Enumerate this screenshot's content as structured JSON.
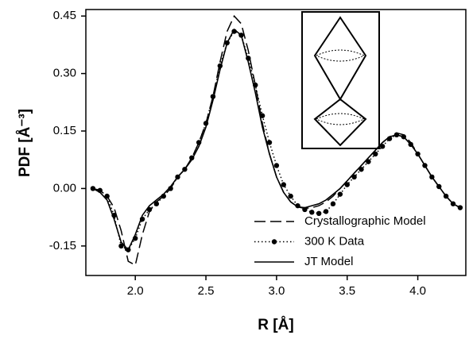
{
  "chart_data": {
    "type": "line",
    "xlabel": "R [Å]",
    "ylabel": "PDF [Å⁻³]",
    "x": [
      1.7,
      1.75,
      1.8,
      1.85,
      1.9,
      1.95,
      2.0,
      2.05,
      2.1,
      2.15,
      2.2,
      2.25,
      2.3,
      2.35,
      2.4,
      2.45,
      2.5,
      2.55,
      2.6,
      2.65,
      2.7,
      2.75,
      2.8,
      2.85,
      2.9,
      2.95,
      3.0,
      3.05,
      3.1,
      3.15,
      3.2,
      3.25,
      3.3,
      3.35,
      3.4,
      3.45,
      3.5,
      3.55,
      3.6,
      3.65,
      3.7,
      3.75,
      3.8,
      3.85,
      3.9,
      3.95,
      4.0,
      4.05,
      4.1,
      4.15,
      4.2,
      4.25,
      4.3
    ],
    "series": [
      {
        "name": "Crystallographic Model",
        "color": "#000000",
        "style": "dashed",
        "values": [
          0.0,
          -0.005,
          -0.02,
          -0.05,
          -0.11,
          -0.19,
          -0.2,
          -0.12,
          -0.06,
          -0.035,
          -0.02,
          0.0,
          0.03,
          0.05,
          0.08,
          0.12,
          0.17,
          0.24,
          0.33,
          0.41,
          0.45,
          0.43,
          0.36,
          0.27,
          0.17,
          0.09,
          0.03,
          -0.01,
          -0.035,
          -0.048,
          -0.052,
          -0.05,
          -0.045,
          -0.035,
          -0.02,
          0.0,
          0.02,
          0.04,
          0.06,
          0.08,
          0.1,
          0.12,
          0.135,
          0.145,
          0.14,
          0.12,
          0.09,
          0.06,
          0.03,
          0.005,
          -0.02,
          -0.04,
          -0.05
        ]
      },
      {
        "name": "300 K Data",
        "color": "#000000",
        "style": "dotted-markers",
        "values": [
          0.0,
          -0.005,
          -0.02,
          -0.07,
          -0.15,
          -0.16,
          -0.13,
          -0.08,
          -0.055,
          -0.04,
          -0.02,
          0.0,
          0.03,
          0.05,
          0.08,
          0.12,
          0.17,
          0.24,
          0.32,
          0.38,
          0.41,
          0.4,
          0.34,
          0.27,
          0.19,
          0.12,
          0.06,
          0.01,
          -0.02,
          -0.045,
          -0.055,
          -0.062,
          -0.065,
          -0.06,
          -0.04,
          -0.015,
          0.01,
          0.03,
          0.05,
          0.07,
          0.09,
          0.11,
          0.13,
          0.14,
          0.135,
          0.115,
          0.09,
          0.06,
          0.03,
          0.005,
          -0.02,
          -0.04,
          -0.05
        ]
      },
      {
        "name": "JT Model",
        "color": "#000000",
        "style": "solid",
        "values": [
          0.0,
          -0.01,
          -0.03,
          -0.08,
          -0.14,
          -0.16,
          -0.12,
          -0.07,
          -0.045,
          -0.03,
          -0.015,
          0.005,
          0.03,
          0.05,
          0.075,
          0.11,
          0.16,
          0.23,
          0.31,
          0.38,
          0.415,
          0.4,
          0.33,
          0.25,
          0.16,
          0.09,
          0.03,
          -0.01,
          -0.035,
          -0.048,
          -0.05,
          -0.045,
          -0.04,
          -0.03,
          -0.015,
          0.0,
          0.02,
          0.04,
          0.06,
          0.08,
          0.1,
          0.12,
          0.135,
          0.14,
          0.135,
          0.115,
          0.09,
          0.06,
          0.03,
          0.005,
          -0.02,
          -0.04,
          -0.05
        ]
      }
    ],
    "xlim": [
      1.65,
      4.34
    ],
    "ylim": [
      -0.227,
      0.467
    ],
    "xticks": [
      {
        "value": 2.0,
        "label": "2.0"
      },
      {
        "value": 2.5,
        "label": "2.5"
      },
      {
        "value": 3.0,
        "label": "3.0"
      },
      {
        "value": 3.5,
        "label": "3.5"
      },
      {
        "value": 4.0,
        "label": "4.0"
      }
    ],
    "yticks": [
      0.45,
      {
        "value": 0.3,
        "label": "0.30"
      },
      0.15,
      {
        "value": 0,
        "label": "0.00"
      },
      -0.15
    ],
    "legend": "lower-right"
  }
}
